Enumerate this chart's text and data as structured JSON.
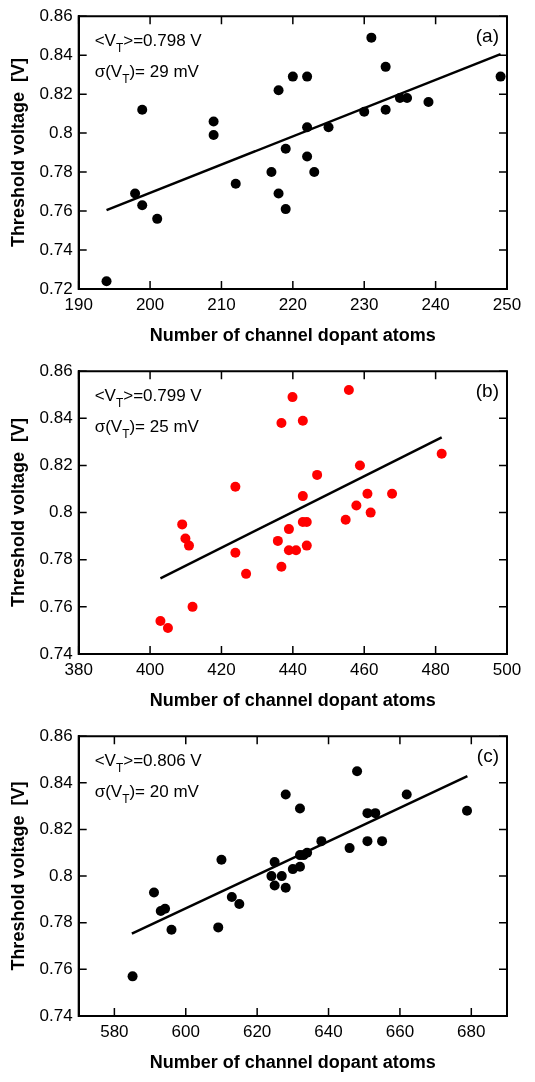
{
  "chart_data": [
    {
      "type": "scatter",
      "xlabel": "Number of channel dopant atoms",
      "ylabel": "Threshold voltage  [V]",
      "xlim": [
        190,
        250
      ],
      "xticks": [
        190,
        200,
        210,
        220,
        230,
        240,
        250
      ],
      "ylim": [
        0.72,
        0.86
      ],
      "yticks": [
        0.72,
        0.74,
        0.76,
        0.78,
        0.8,
        0.82,
        0.84,
        0.86
      ],
      "grid": false,
      "legend": false,
      "marker": "circle",
      "annotations": [
        "<V$_{T}$>=0.798 V",
        "σ(V$_{T}$)= 29 mV",
        "(a)"
      ],
      "series": [
        {
          "color": "#000000",
          "x": [
            193.9,
            197.9,
            198.9,
            198.9,
            201.0,
            208.9,
            208.9,
            212.0,
            217.0,
            218.0,
            218.0,
            219.0,
            219.0,
            220.0,
            222.0,
            222.0,
            222.0,
            223.0,
            225.0,
            230.0,
            231.0,
            233.0,
            233.0,
            235.0,
            236.0,
            239.0,
            249.1
          ],
          "values": [
            0.724,
            0.769,
            0.763,
            0.812,
            0.756,
            0.806,
            0.799,
            0.774,
            0.78,
            0.822,
            0.769,
            0.792,
            0.761,
            0.829,
            0.829,
            0.803,
            0.788,
            0.78,
            0.803,
            0.811,
            0.849,
            0.834,
            0.812,
            0.818,
            0.818,
            0.816,
            0.829
          ]
        },
        {
          "type": "line",
          "color": "#000000",
          "marker": "none",
          "x": [
            193.9,
            249.1
          ],
          "values": [
            0.7605,
            0.8405
          ]
        }
      ]
    },
    {
      "type": "scatter",
      "xlabel": "Number of channel dopant atoms",
      "ylabel": "Threshold voltage  [V]",
      "xlim": [
        380,
        500
      ],
      "xticks": [
        380,
        400,
        420,
        440,
        460,
        480,
        500
      ],
      "ylim": [
        0.74,
        0.86
      ],
      "yticks": [
        0.74,
        0.76,
        0.78,
        0.8,
        0.82,
        0.84,
        0.86
      ],
      "grid": false,
      "legend": false,
      "marker": "circle",
      "annotations": [
        "<V$_{T}$>=0.799 V",
        "σ(V$_{T}$)= 25 mV",
        "(b)"
      ],
      "series": [
        {
          "color": "#ff0000",
          "x": [
            402.9,
            405.0,
            409.0,
            409.9,
            410.9,
            411.9,
            423.9,
            423.9,
            426.9,
            435.8,
            436.8,
            436.8,
            438.9,
            438.9,
            439.9,
            440.9,
            442.8,
            442.8,
            442.8,
            443.9,
            443.9,
            446.8,
            454.8,
            455.7,
            457.8,
            458.8,
            460.9,
            461.8,
            467.8,
            481.7
          ],
          "values": [
            0.754,
            0.751,
            0.795,
            0.789,
            0.786,
            0.76,
            0.811,
            0.783,
            0.774,
            0.788,
            0.838,
            0.777,
            0.793,
            0.784,
            0.849,
            0.784,
            0.839,
            0.807,
            0.796,
            0.796,
            0.786,
            0.816,
            0.797,
            0.852,
            0.803,
            0.82,
            0.808,
            0.8,
            0.808,
            0.825
          ]
        },
        {
          "type": "line",
          "color": "#000000",
          "marker": "none",
          "x": [
            402.9,
            481.7
          ],
          "values": [
            0.7721,
            0.8319
          ]
        }
      ]
    },
    {
      "type": "scatter",
      "xlabel": "Number of channel dopant atoms",
      "ylabel": "Threshold voltage  [V]",
      "xlim": [
        570,
        690
      ],
      "xticks": [
        580,
        600,
        620,
        640,
        660,
        680
      ],
      "ylim": [
        0.74,
        0.86
      ],
      "yticks": [
        0.74,
        0.76,
        0.78,
        0.8,
        0.82,
        0.84,
        0.86
      ],
      "grid": false,
      "legend": false,
      "marker": "circle",
      "annotations": [
        "<V$_{T}$>=0.806 V",
        "σ(V$_{T}$)= 20 mV",
        "(c)"
      ],
      "series": [
        {
          "color": "#000000",
          "x": [
            585.1,
            591.1,
            593.0,
            594.2,
            596.0,
            609.1,
            610.0,
            612.9,
            615.0,
            624.0,
            624.9,
            624.9,
            626.9,
            628.0,
            628.0,
            630.0,
            632.0,
            632.0,
            632.0,
            633.0,
            634.0,
            638.0,
            645.9,
            648.0,
            650.9,
            650.9,
            653.1,
            655.0,
            661.9,
            678.8
          ],
          "values": [
            0.757,
            0.793,
            0.785,
            0.786,
            0.777,
            0.778,
            0.807,
            0.791,
            0.788,
            0.8,
            0.806,
            0.796,
            0.8,
            0.835,
            0.795,
            0.803,
            0.829,
            0.809,
            0.804,
            0.809,
            0.81,
            0.815,
            0.812,
            0.845,
            0.827,
            0.815,
            0.827,
            0.815,
            0.835,
            0.828
          ]
        },
        {
          "type": "line",
          "color": "#000000",
          "marker": "none",
          "x": [
            584.9,
            678.9
          ],
          "values": [
            0.7753,
            0.8429
          ]
        }
      ]
    }
  ]
}
